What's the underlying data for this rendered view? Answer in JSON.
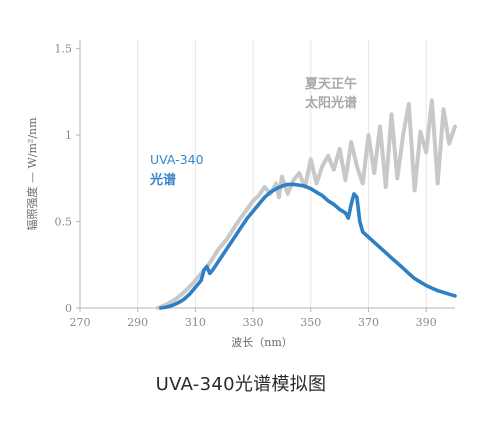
{
  "chart_data": {
    "type": "line",
    "xlabel": "波长（nm）",
    "ylabel": "辐照强度 — W/m²/nm",
    "xlim": [
      270,
      400
    ],
    "ylim": [
      0,
      1.55
    ],
    "x_ticks": [
      "270",
      "290",
      "310",
      "330",
      "350",
      "370",
      "390"
    ],
    "y_ticks": [
      "0",
      "0.5",
      "1",
      "1.5"
    ],
    "grid": "vertical",
    "series": [
      {
        "name": "夏天正午太阳光谱",
        "color": "#c8c8c8",
        "x": [
          297,
          300,
          303,
          306,
          309,
          312,
          315,
          318,
          321,
          324,
          327,
          330,
          332,
          334,
          336,
          338,
          339,
          340,
          342,
          344,
          346,
          348,
          350,
          352,
          354,
          356,
          358,
          360,
          362,
          364,
          366,
          368,
          370,
          372,
          374,
          376,
          378,
          380,
          382,
          384,
          386,
          388,
          390,
          392,
          394,
          396,
          398,
          400
        ],
        "y": [
          0.0,
          0.02,
          0.05,
          0.09,
          0.14,
          0.2,
          0.26,
          0.34,
          0.4,
          0.48,
          0.55,
          0.62,
          0.65,
          0.7,
          0.66,
          0.72,
          0.64,
          0.76,
          0.66,
          0.74,
          0.78,
          0.7,
          0.86,
          0.72,
          0.82,
          0.88,
          0.8,
          0.92,
          0.74,
          0.96,
          0.82,
          0.72,
          1.0,
          0.78,
          1.05,
          0.7,
          1.12,
          0.75,
          1.0,
          1.18,
          0.68,
          1.02,
          0.9,
          1.2,
          0.72,
          1.15,
          0.95,
          1.05
        ]
      },
      {
        "name": "UVA-340光谱",
        "color": "#2e7fc4",
        "x": [
          298,
          300,
          302,
          304,
          306,
          308,
          310,
          312,
          313,
          314,
          315,
          316,
          318,
          320,
          322,
          324,
          326,
          328,
          330,
          332,
          334,
          336,
          338,
          340,
          342,
          344,
          346,
          348,
          350,
          352,
          354,
          356,
          358,
          360,
          362,
          363,
          364,
          365,
          366,
          367,
          368,
          370,
          372,
          374,
          376,
          378,
          380,
          382,
          384,
          386,
          388,
          390,
          392,
          394,
          396,
          398,
          400
        ],
        "y": [
          0.0,
          0.005,
          0.015,
          0.03,
          0.05,
          0.08,
          0.12,
          0.16,
          0.22,
          0.24,
          0.2,
          0.22,
          0.27,
          0.32,
          0.37,
          0.42,
          0.47,
          0.52,
          0.56,
          0.6,
          0.64,
          0.67,
          0.69,
          0.705,
          0.715,
          0.715,
          0.71,
          0.705,
          0.69,
          0.67,
          0.65,
          0.62,
          0.6,
          0.57,
          0.55,
          0.52,
          0.6,
          0.66,
          0.64,
          0.5,
          0.44,
          0.41,
          0.38,
          0.35,
          0.32,
          0.29,
          0.26,
          0.23,
          0.2,
          0.17,
          0.15,
          0.13,
          0.115,
          0.1,
          0.09,
          0.08,
          0.07
        ]
      }
    ],
    "annotations": {
      "uva_line1": "UVA-340",
      "uva_line2": "光谱",
      "sun_line1": "夏天正午",
      "sun_line2": "太阳光谱"
    }
  },
  "caption": "UVA-340光谱模拟图"
}
